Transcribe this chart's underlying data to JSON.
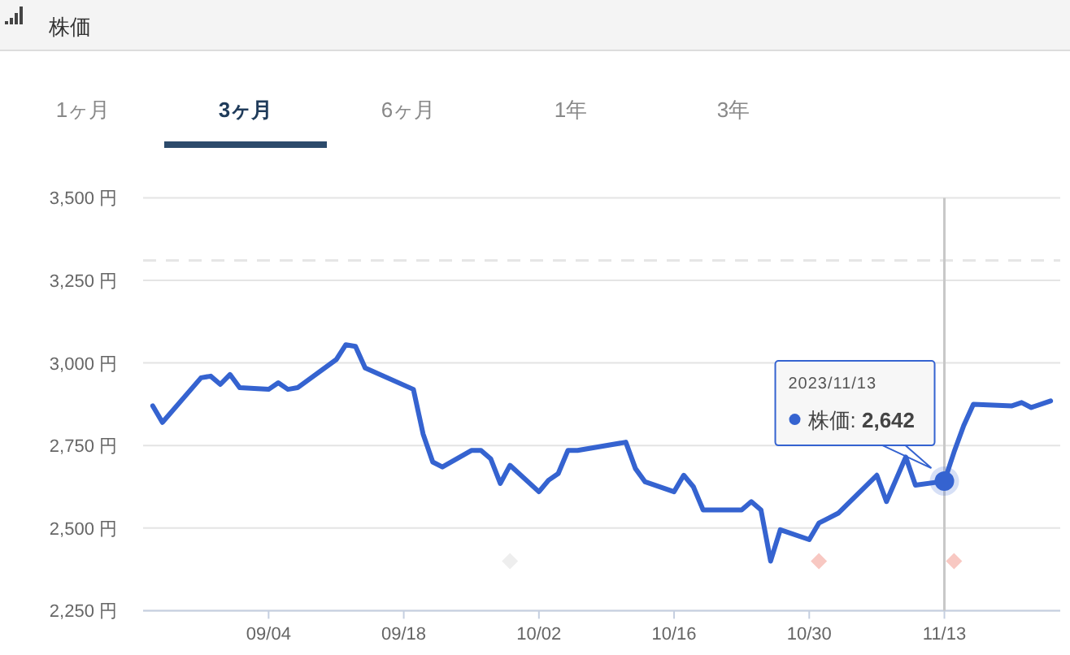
{
  "chart_data": {
    "type": "line",
    "title": "株価",
    "annotations": [
      "1ヶ月",
      "3ヶ月",
      "6ヶ月",
      "1年",
      "3年",
      "2023/11/13"
    ],
    "x": [
      "2023-08-23",
      "2023-08-24",
      "2023-08-28",
      "2023-08-29",
      "2023-08-30",
      "2023-08-31",
      "2023-09-01",
      "2023-09-04",
      "2023-09-05",
      "2023-09-06",
      "2023-09-07",
      "2023-09-11",
      "2023-09-12",
      "2023-09-13",
      "2023-09-14",
      "2023-09-19",
      "2023-09-20",
      "2023-09-21",
      "2023-09-22",
      "2023-09-25",
      "2023-09-26",
      "2023-09-27",
      "2023-09-28",
      "2023-09-29",
      "2023-10-02",
      "2023-10-03",
      "2023-10-04",
      "2023-10-05",
      "2023-10-06",
      "2023-10-11",
      "2023-10-12",
      "2023-10-13",
      "2023-10-16",
      "2023-10-17",
      "2023-10-18",
      "2023-10-19",
      "2023-10-23",
      "2023-10-24",
      "2023-10-25",
      "2023-10-26",
      "2023-10-27",
      "2023-10-30",
      "2023-10-31",
      "2023-11-01",
      "2023-11-02",
      "2023-11-06",
      "2023-11-07",
      "2023-11-09",
      "2023-11-10",
      "2023-11-13",
      "2023-11-14",
      "2023-11-15",
      "2023-11-16",
      "2023-11-20",
      "2023-11-21",
      "2023-11-22",
      "2023-11-24"
    ],
    "series": [
      {
        "name": "株価:",
        "color": "#3563d0",
        "values": [
          2870,
          2820,
          2955,
          2960,
          2935,
          2965,
          2925,
          2920,
          2940,
          2920,
          2925,
          3010,
          3055,
          3050,
          2985,
          2920,
          2785,
          2700,
          2685,
          2735,
          2735,
          2710,
          2635,
          2690,
          2610,
          2645,
          2665,
          2735,
          2735,
          2760,
          2680,
          2640,
          2610,
          2660,
          2625,
          2555,
          2555,
          2580,
          2555,
          2400,
          2495,
          2465,
          2515,
          2530,
          2545,
          2660,
          2580,
          2715,
          2630,
          2642,
          2730,
          2810,
          2875,
          2870,
          2880,
          2865,
          2885
        ],
        "value_labels": [
          null,
          null,
          null,
          null,
          null,
          null,
          null,
          null,
          null,
          null,
          null,
          null,
          null,
          null,
          null,
          null,
          null,
          null,
          null,
          null,
          null,
          null,
          null,
          null,
          null,
          null,
          null,
          null,
          null,
          null,
          null,
          null,
          null,
          null,
          null,
          null,
          null,
          null,
          null,
          null,
          null,
          null,
          null,
          null,
          null,
          null,
          null,
          null,
          null,
          "2,642",
          null,
          null,
          null,
          null,
          null,
          null,
          null
        ]
      },
      {
        "type": "scatter",
        "marker": "diamond",
        "x": [
          "2023-09-29",
          "2023-10-31",
          "2023-11-14"
        ],
        "values": [
          2400,
          2400,
          2400
        ],
        "colors": [
          "#eeeeee",
          "#f8c8c2",
          "#f8c8c2"
        ]
      }
    ],
    "xlim": [
      "2023-08-22",
      "2023-11-25"
    ],
    "xticks": [
      {
        "value": "2023-09-04",
        "label": "09/04"
      },
      {
        "value": "2023-09-18",
        "label": "09/18"
      },
      {
        "value": "2023-10-02",
        "label": "10/02"
      },
      {
        "value": "2023-10-16",
        "label": "10/16"
      },
      {
        "value": "2023-10-30",
        "label": "10/30"
      },
      {
        "value": "2023-11-13",
        "label": "11/13"
      }
    ],
    "ylim": [
      2250,
      3500
    ],
    "yticks": [
      {
        "value": 2250,
        "label": "2,250 円"
      },
      {
        "value": 2500,
        "label": "2,500 円"
      },
      {
        "value": 2750,
        "label": "2,750 円"
      },
      {
        "value": 3000,
        "label": "3,000 円"
      },
      {
        "value": 3250,
        "label": "3,250 円"
      },
      {
        "value": 3500,
        "label": "3,500 円"
      }
    ],
    "ref_lines": [
      {
        "axis": "y",
        "value": 3310,
        "label": null,
        "color": "#e6e6e6",
        "line_style": "dashed"
      },
      {
        "axis": "x",
        "value": "2023-11-13",
        "label": null,
        "color": "#c8c8c8",
        "line_style": "solid"
      }
    ],
    "grid": "y",
    "legend": "right"
  }
}
